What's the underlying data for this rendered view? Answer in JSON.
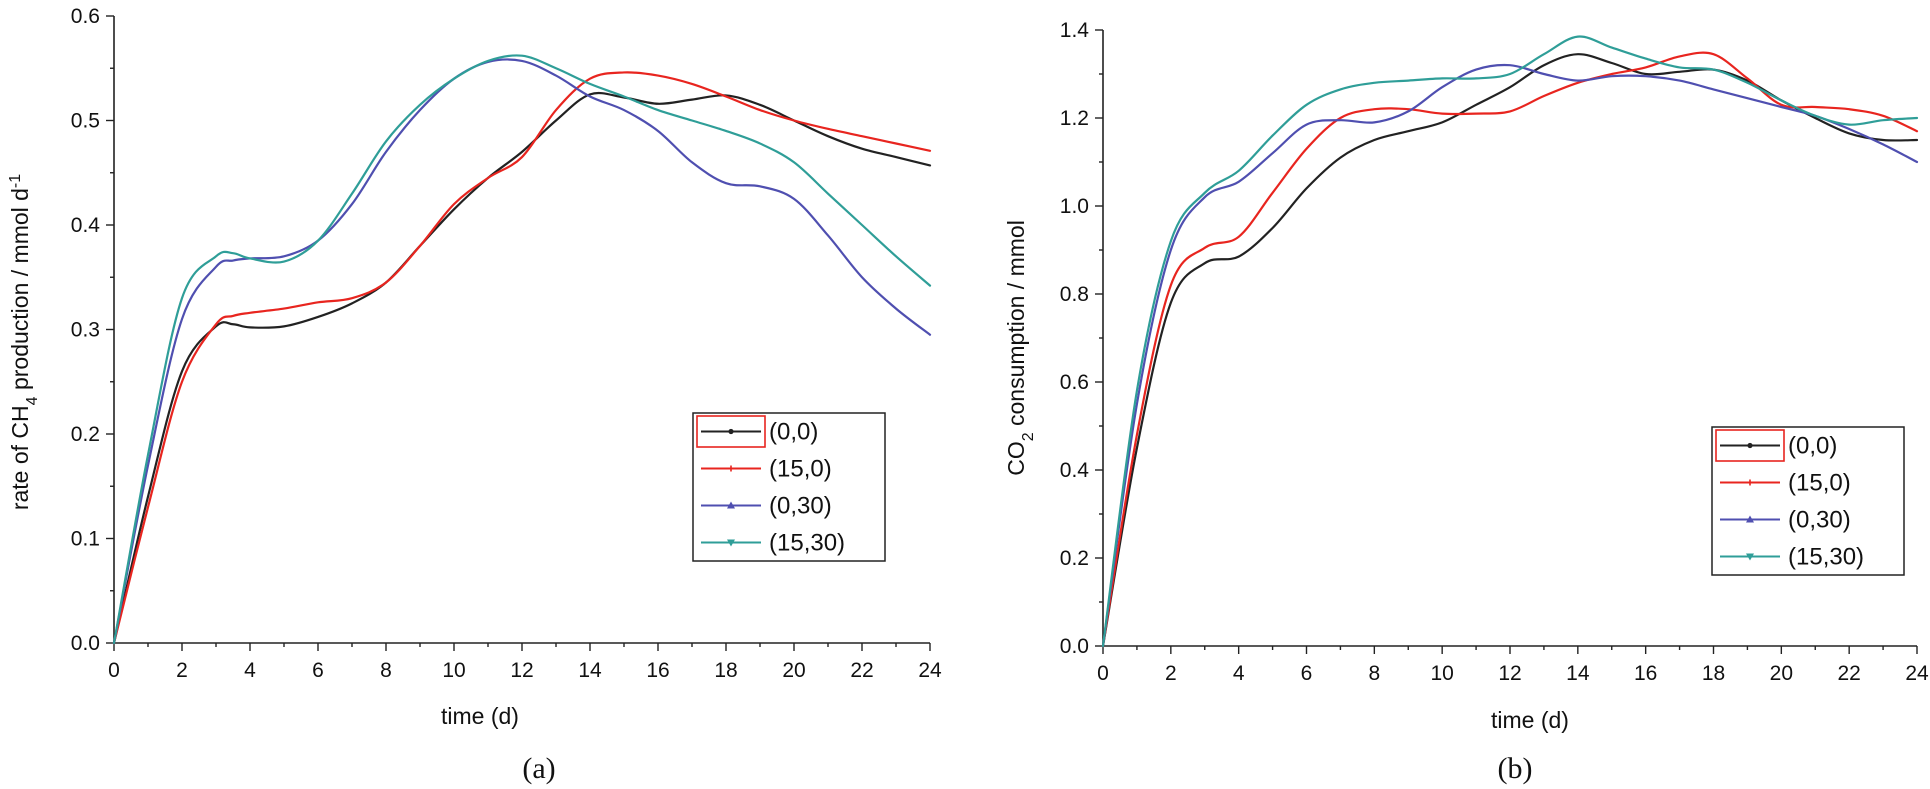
{
  "chart_data": [
    {
      "type": "line",
      "panel_caption": "(a)",
      "title": "",
      "xlabel": "time (d)",
      "ylabel_parts": [
        "rate  of  CH",
        "4",
        "  production  /  mmol d",
        "-1"
      ],
      "xlim": [
        0,
        24
      ],
      "ylim": [
        0.0,
        0.6
      ],
      "xticks": [
        0,
        2,
        4,
        6,
        8,
        10,
        12,
        14,
        16,
        18,
        20,
        22,
        24
      ],
      "xtick_labels": [
        "0",
        "2",
        "4",
        "6",
        "8",
        "10",
        "12",
        "14",
        "16",
        "18",
        "20",
        "22",
        "24"
      ],
      "yticks": [
        0.0,
        0.1,
        0.2,
        0.3,
        0.4,
        0.5,
        0.6
      ],
      "ytick_labels": [
        "0.0",
        "0.1",
        "0.2",
        "0.3",
        "0.4",
        "0.5",
        "0.6"
      ],
      "grid": false,
      "legend_position": "right-middle",
      "series": [
        {
          "name": "(0,0)",
          "color": "#222222",
          "marker": "dot",
          "x": [
            0,
            1,
            2,
            3,
            3.5,
            4,
            5,
            6,
            7,
            8,
            9,
            10,
            11,
            12,
            13,
            14,
            15,
            16,
            17,
            18,
            19,
            20,
            21,
            22,
            23,
            24
          ],
          "y": [
            0.0,
            0.14,
            0.26,
            0.303,
            0.305,
            0.302,
            0.303,
            0.312,
            0.325,
            0.345,
            0.38,
            0.415,
            0.445,
            0.47,
            0.5,
            0.525,
            0.522,
            0.516,
            0.52,
            0.524,
            0.515,
            0.5,
            0.485,
            0.473,
            0.465,
            0.457
          ]
        },
        {
          "name": "(15,0)",
          "color": "#e8251f",
          "marker": "plus",
          "x": [
            0,
            1,
            2,
            3,
            3.5,
            4,
            5,
            6,
            7,
            8,
            9,
            10,
            11,
            12,
            13,
            14,
            15,
            16,
            17,
            18,
            19,
            20,
            21,
            22,
            23,
            24
          ],
          "y": [
            0.0,
            0.13,
            0.25,
            0.305,
            0.313,
            0.316,
            0.32,
            0.326,
            0.33,
            0.345,
            0.38,
            0.42,
            0.445,
            0.465,
            0.51,
            0.54,
            0.546,
            0.543,
            0.535,
            0.523,
            0.51,
            0.5,
            0.492,
            0.485,
            0.478,
            0.471
          ]
        },
        {
          "name": "(0,30)",
          "color": "#4f4fb0",
          "marker": "triangle-up",
          "x": [
            0,
            1,
            2,
            3,
            3.5,
            4,
            5,
            6,
            7,
            8,
            9,
            10,
            11,
            12,
            13,
            14,
            15,
            16,
            17,
            18,
            19,
            20,
            21,
            22,
            23,
            24
          ],
          "y": [
            0.0,
            0.17,
            0.31,
            0.36,
            0.366,
            0.368,
            0.37,
            0.385,
            0.42,
            0.47,
            0.51,
            0.54,
            0.556,
            0.557,
            0.543,
            0.523,
            0.51,
            0.49,
            0.46,
            0.44,
            0.437,
            0.425,
            0.39,
            0.35,
            0.32,
            0.295
          ]
        },
        {
          "name": "(15,30)",
          "color": "#2f9e98",
          "marker": "triangle-down",
          "x": [
            0,
            1,
            2,
            3,
            3.5,
            4,
            5,
            6,
            7,
            8,
            9,
            10,
            11,
            12,
            13,
            14,
            15,
            16,
            17,
            18,
            19,
            20,
            21,
            22,
            23,
            24
          ],
          "y": [
            0.0,
            0.18,
            0.33,
            0.37,
            0.373,
            0.368,
            0.365,
            0.385,
            0.43,
            0.48,
            0.515,
            0.54,
            0.557,
            0.562,
            0.55,
            0.535,
            0.523,
            0.51,
            0.5,
            0.49,
            0.478,
            0.46,
            0.43,
            0.4,
            0.37,
            0.342
          ]
        }
      ]
    },
    {
      "type": "line",
      "panel_caption": "(b)",
      "title": "",
      "xlabel": "time (d)",
      "ylabel_parts": [
        "CO",
        "2",
        " consumption / mmol"
      ],
      "xlim": [
        0,
        24
      ],
      "ylim": [
        0.0,
        1.4
      ],
      "xticks": [
        0,
        2,
        4,
        6,
        8,
        10,
        12,
        14,
        16,
        18,
        20,
        22,
        24
      ],
      "xtick_labels": [
        "0",
        "2",
        "4",
        "6",
        "8",
        "10",
        "12",
        "14",
        "16",
        "18",
        "20",
        "22",
        "24"
      ],
      "yticks": [
        0.0,
        0.2,
        0.4,
        0.6,
        0.8,
        1.0,
        1.2,
        1.4
      ],
      "ytick_labels": [
        "0.0",
        "0.2",
        "0.4",
        "0.6",
        "0.8",
        "1.0",
        "1.2",
        "1.4"
      ],
      "grid": false,
      "legend_position": "right-middle",
      "series": [
        {
          "name": "(0,0)",
          "color": "#222222",
          "marker": "dot",
          "x": [
            0,
            1,
            2,
            3,
            4,
            5,
            6,
            7,
            8,
            9,
            10,
            11,
            12,
            13,
            14,
            15,
            16,
            17,
            18,
            19,
            20,
            21,
            22,
            23,
            24
          ],
          "y": [
            0.0,
            0.45,
            0.78,
            0.87,
            0.885,
            0.95,
            1.04,
            1.11,
            1.15,
            1.17,
            1.19,
            1.23,
            1.27,
            1.32,
            1.345,
            1.325,
            1.3,
            1.305,
            1.31,
            1.285,
            1.24,
            1.2,
            1.165,
            1.15,
            1.15
          ]
        },
        {
          "name": "(15,0)",
          "color": "#e8251f",
          "marker": "plus",
          "x": [
            0,
            1,
            2,
            3,
            4,
            5,
            6,
            7,
            8,
            9,
            10,
            11,
            12,
            13,
            14,
            15,
            16,
            17,
            18,
            19,
            20,
            21,
            22,
            23,
            24
          ],
          "y": [
            0.0,
            0.48,
            0.82,
            0.905,
            0.93,
            1.03,
            1.13,
            1.2,
            1.22,
            1.22,
            1.21,
            1.21,
            1.215,
            1.25,
            1.28,
            1.3,
            1.315,
            1.34,
            1.345,
            1.29,
            1.23,
            1.225,
            1.22,
            1.205,
            1.17
          ]
        },
        {
          "name": "(0,30)",
          "color": "#4f4fb0",
          "marker": "triangle-up",
          "x": [
            0,
            1,
            2,
            3,
            4,
            5,
            6,
            7,
            8,
            9,
            10,
            11,
            12,
            13,
            14,
            15,
            16,
            17,
            18,
            19,
            20,
            21,
            22,
            23,
            24
          ],
          "y": [
            0.0,
            0.55,
            0.9,
            1.02,
            1.055,
            1.12,
            1.185,
            1.195,
            1.19,
            1.215,
            1.27,
            1.31,
            1.32,
            1.3,
            1.285,
            1.295,
            1.295,
            1.285,
            1.265,
            1.245,
            1.225,
            1.205,
            1.175,
            1.14,
            1.1
          ]
        },
        {
          "name": "(15,30)",
          "color": "#2f9e98",
          "marker": "triangle-down",
          "x": [
            0,
            1,
            2,
            3,
            4,
            5,
            6,
            7,
            8,
            9,
            10,
            11,
            12,
            13,
            14,
            15,
            16,
            17,
            18,
            19,
            20,
            21,
            22,
            23,
            24
          ],
          "y": [
            0.0,
            0.58,
            0.92,
            1.03,
            1.08,
            1.16,
            1.23,
            1.265,
            1.28,
            1.285,
            1.29,
            1.29,
            1.3,
            1.345,
            1.385,
            1.36,
            1.335,
            1.315,
            1.31,
            1.28,
            1.24,
            1.205,
            1.185,
            1.195,
            1.2
          ]
        }
      ]
    }
  ]
}
